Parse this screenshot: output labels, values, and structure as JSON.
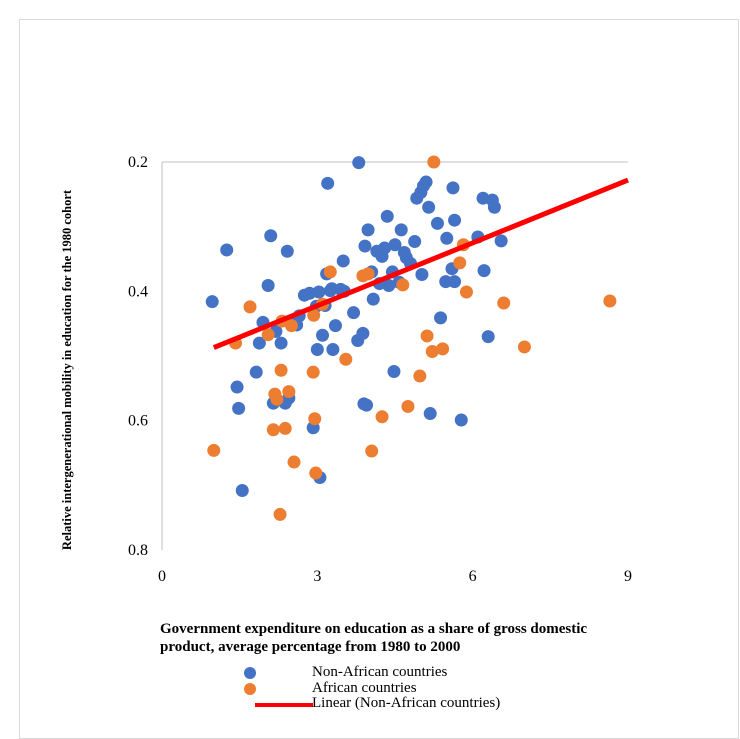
{
  "chart_data": {
    "type": "scatter",
    "title": "",
    "xlabel_line1": "Government expenditure on education as a share of gross domestic",
    "xlabel_line2": "product, average percentage from 1980 to 2000",
    "ylabel": "Relative intergenerational mobility in education for the 1980 cohort",
    "xlim": [
      0,
      9
    ],
    "ylim": [
      0.8,
      0.2
    ],
    "y_reversed": true,
    "x_ticks": [
      "0",
      "3",
      "6",
      "9"
    ],
    "y_ticks": [
      "0.2",
      "0.4",
      "0.6",
      "0.8"
    ],
    "grid": false,
    "legend_position": "bottom",
    "series": [
      {
        "name": "Non-African countries",
        "color": "#4472c4",
        "points": [
          [
            0.97,
            0.416
          ],
          [
            1.25,
            0.336
          ],
          [
            1.45,
            0.548
          ],
          [
            1.48,
            0.581
          ],
          [
            1.55,
            0.708
          ],
          [
            1.82,
            0.525
          ],
          [
            1.88,
            0.48
          ],
          [
            1.95,
            0.448
          ],
          [
            2.05,
            0.391
          ],
          [
            2.1,
            0.314
          ],
          [
            2.15,
            0.573
          ],
          [
            2.2,
            0.462
          ],
          [
            2.3,
            0.48
          ],
          [
            2.38,
            0.573
          ],
          [
            2.42,
            0.338
          ],
          [
            2.45,
            0.565
          ],
          [
            2.5,
            0.449
          ],
          [
            2.6,
            0.452
          ],
          [
            2.65,
            0.438
          ],
          [
            2.75,
            0.406
          ],
          [
            2.85,
            0.403
          ],
          [
            2.92,
            0.611
          ],
          [
            2.98,
            0.423
          ],
          [
            3.0,
            0.49
          ],
          [
            3.03,
            0.401
          ],
          [
            3.05,
            0.688
          ],
          [
            3.1,
            0.468
          ],
          [
            3.15,
            0.422
          ],
          [
            3.18,
            0.373
          ],
          [
            3.2,
            0.233
          ],
          [
            3.25,
            0.399
          ],
          [
            3.28,
            0.396
          ],
          [
            3.3,
            0.49
          ],
          [
            3.35,
            0.453
          ],
          [
            3.45,
            0.397
          ],
          [
            3.5,
            0.353
          ],
          [
            3.52,
            0.4
          ],
          [
            3.7,
            0.433
          ],
          [
            3.78,
            0.476
          ],
          [
            3.8,
            0.201
          ],
          [
            3.88,
            0.465
          ],
          [
            3.9,
            0.574
          ],
          [
            3.92,
            0.33
          ],
          [
            3.95,
            0.576
          ],
          [
            3.98,
            0.305
          ],
          [
            4.05,
            0.37
          ],
          [
            4.08,
            0.412
          ],
          [
            4.15,
            0.338
          ],
          [
            4.2,
            0.388
          ],
          [
            4.25,
            0.346
          ],
          [
            4.3,
            0.333
          ],
          [
            4.35,
            0.284
          ],
          [
            4.38,
            0.391
          ],
          [
            4.45,
            0.37
          ],
          [
            4.48,
            0.524
          ],
          [
            4.5,
            0.328
          ],
          [
            4.58,
            0.386
          ],
          [
            4.62,
            0.305
          ],
          [
            4.68,
            0.34
          ],
          [
            4.72,
            0.348
          ],
          [
            4.8,
            0.357
          ],
          [
            4.88,
            0.323
          ],
          [
            4.92,
            0.256
          ],
          [
            5.0,
            0.247
          ],
          [
            5.02,
            0.374
          ],
          [
            5.05,
            0.237
          ],
          [
            5.1,
            0.231
          ],
          [
            5.15,
            0.27
          ],
          [
            5.18,
            0.589
          ],
          [
            5.32,
            0.295
          ],
          [
            5.38,
            0.441
          ],
          [
            5.48,
            0.385
          ],
          [
            5.5,
            0.318
          ],
          [
            5.6,
            0.365
          ],
          [
            5.62,
            0.24
          ],
          [
            5.65,
            0.385
          ],
          [
            5.65,
            0.29
          ],
          [
            5.78,
            0.599
          ],
          [
            6.1,
            0.316
          ],
          [
            6.2,
            0.256
          ],
          [
            6.22,
            0.368
          ],
          [
            6.3,
            0.47
          ],
          [
            6.38,
            0.259
          ],
          [
            6.42,
            0.27
          ],
          [
            6.55,
            0.322
          ]
        ]
      },
      {
        "name": "African countries",
        "color": "#ed7d31",
        "points": [
          [
            1.0,
            0.646
          ],
          [
            1.42,
            0.48
          ],
          [
            1.7,
            0.424
          ],
          [
            2.05,
            0.467
          ],
          [
            2.15,
            0.614
          ],
          [
            2.18,
            0.559
          ],
          [
            2.22,
            0.567
          ],
          [
            2.28,
            0.745
          ],
          [
            2.3,
            0.522
          ],
          [
            2.32,
            0.446
          ],
          [
            2.38,
            0.612
          ],
          [
            2.45,
            0.555
          ],
          [
            2.5,
            0.453
          ],
          [
            2.55,
            0.664
          ],
          [
            2.92,
            0.525
          ],
          [
            2.93,
            0.437
          ],
          [
            2.95,
            0.597
          ],
          [
            2.97,
            0.681
          ],
          [
            3.1,
            0.42
          ],
          [
            3.25,
            0.37
          ],
          [
            3.55,
            0.505
          ],
          [
            3.88,
            0.376
          ],
          [
            3.98,
            0.373
          ],
          [
            4.05,
            0.647
          ],
          [
            4.25,
            0.594
          ],
          [
            4.65,
            0.39
          ],
          [
            4.75,
            0.578
          ],
          [
            4.98,
            0.531
          ],
          [
            5.12,
            0.469
          ],
          [
            5.22,
            0.493
          ],
          [
            5.25,
            0.2
          ],
          [
            5.42,
            0.489
          ],
          [
            5.75,
            0.356
          ],
          [
            5.82,
            0.328
          ],
          [
            5.88,
            0.401
          ],
          [
            6.6,
            0.418
          ],
          [
            7.0,
            0.486
          ],
          [
            8.65,
            0.415
          ]
        ]
      }
    ],
    "trendline": {
      "name": "Linear (Non-African countries)",
      "color": "#ff0000",
      "x": [
        1.0,
        9.0
      ],
      "y": [
        0.487,
        0.228
      ]
    }
  }
}
